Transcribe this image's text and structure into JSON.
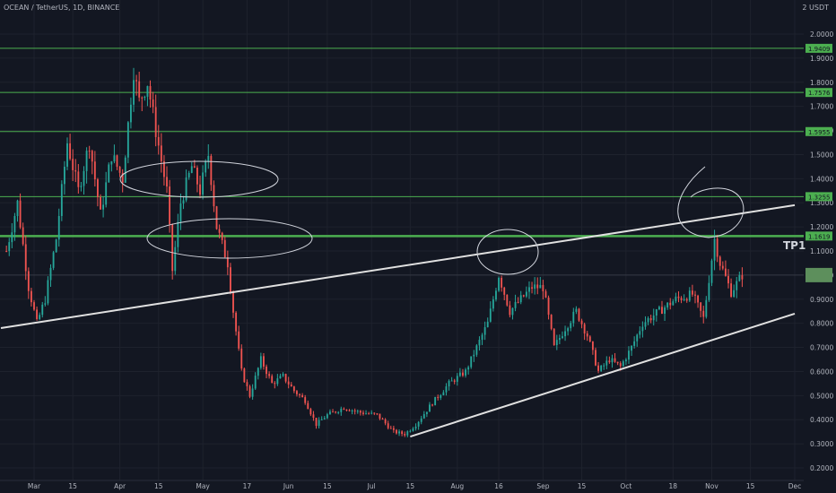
{
  "header": {
    "symbol": "OCEAN / TetherUS, 1D, BINANCE",
    "unit": "2 USDT"
  },
  "annotation": {
    "tp1": "TP1"
  },
  "colors": {
    "background": "#131722",
    "up": "#26a69a",
    "down": "#ef5350",
    "level": "#4caf50",
    "trendline": "#e0e0e0",
    "hand_drawn": "#d1d4dc"
  },
  "chart_data": {
    "type": "candlestick",
    "title": "OCEAN / TetherUS, 1D, BINANCE",
    "y_ticks": [
      2.0,
      1.9,
      1.8,
      1.7,
      1.6,
      1.5,
      1.4,
      1.3,
      1.2,
      1.1,
      1.0,
      0.9,
      0.8,
      0.7,
      0.6,
      0.5,
      0.4,
      0.3,
      0.2
    ],
    "y_tick_labels": [
      "2.0000",
      "1.9000",
      "1.8000",
      "1.7000",
      "1.6000",
      "1.5000",
      "1.4000",
      "1.3000",
      "1.2000",
      "1.1000",
      "1.0000",
      "0.9000",
      "0.8000",
      "0.7000",
      "0.6000",
      "0.5000",
      "0.4000",
      "0.3000",
      "0.2000"
    ],
    "x_tick_labels": [
      "Mar",
      "15",
      "Apr",
      "15",
      "May",
      "17",
      "Jun",
      "15",
      "Jul",
      "15",
      "Aug",
      "16",
      "Sep",
      "15",
      "Oct",
      "18",
      "Nov",
      "15",
      "Dec"
    ],
    "x_tick_days": [
      0,
      14,
      31,
      45,
      61,
      77,
      92,
      106,
      122,
      136,
      153,
      168,
      184,
      198,
      214,
      231,
      245,
      259,
      275
    ],
    "ylim": [
      0.2,
      2.05
    ],
    "levels": [
      {
        "value": 1.9409,
        "label": "1.9409"
      },
      {
        "value": 1.7576,
        "label": "1.7576"
      },
      {
        "value": 1.5955,
        "label": "1.5955"
      },
      {
        "value": 1.3255,
        "label": "1.3255"
      },
      {
        "value": 1.1619,
        "label": "1.1619"
      }
    ],
    "trendlines": [
      {
        "from": {
          "day": -12,
          "value": 0.78
        },
        "to": {
          "day": 275,
          "value": 1.29
        }
      },
      {
        "from": {
          "day": 136,
          "value": 0.33
        },
        "to": {
          "day": 275,
          "value": 0.84
        }
      }
    ],
    "anchors": [
      {
        "day": -10,
        "price": 1.1
      },
      {
        "day": -6,
        "price": 1.3
      },
      {
        "day": -2,
        "price": 0.95
      },
      {
        "day": 1,
        "price": 0.8
      },
      {
        "day": 4,
        "price": 0.9
      },
      {
        "day": 8,
        "price": 1.15
      },
      {
        "day": 12,
        "price": 1.55
      },
      {
        "day": 16,
        "price": 1.35
      },
      {
        "day": 20,
        "price": 1.55
      },
      {
        "day": 24,
        "price": 1.25
      },
      {
        "day": 28,
        "price": 1.5
      },
      {
        "day": 32,
        "price": 1.4
      },
      {
        "day": 36,
        "price": 1.85
      },
      {
        "day": 38,
        "price": 1.72
      },
      {
        "day": 41,
        "price": 1.8
      },
      {
        "day": 44,
        "price": 1.6
      },
      {
        "day": 48,
        "price": 1.35
      },
      {
        "day": 50,
        "price": 1.02
      },
      {
        "day": 53,
        "price": 1.3
      },
      {
        "day": 57,
        "price": 1.45
      },
      {
        "day": 60,
        "price": 1.35
      },
      {
        "day": 63,
        "price": 1.5
      },
      {
        "day": 66,
        "price": 1.2
      },
      {
        "day": 70,
        "price": 1.05
      },
      {
        "day": 72,
        "price": 0.85
      },
      {
        "day": 75,
        "price": 0.6
      },
      {
        "day": 78,
        "price": 0.5
      },
      {
        "day": 82,
        "price": 0.65
      },
      {
        "day": 86,
        "price": 0.55
      },
      {
        "day": 90,
        "price": 0.58
      },
      {
        "day": 94,
        "price": 0.52
      },
      {
        "day": 98,
        "price": 0.48
      },
      {
        "day": 102,
        "price": 0.38
      },
      {
        "day": 106,
        "price": 0.42
      },
      {
        "day": 112,
        "price": 0.45
      },
      {
        "day": 118,
        "price": 0.43
      },
      {
        "day": 124,
        "price": 0.42
      },
      {
        "day": 130,
        "price": 0.35
      },
      {
        "day": 134,
        "price": 0.34
      },
      {
        "day": 138,
        "price": 0.38
      },
      {
        "day": 144,
        "price": 0.47
      },
      {
        "day": 150,
        "price": 0.55
      },
      {
        "day": 156,
        "price": 0.6
      },
      {
        "day": 160,
        "price": 0.7
      },
      {
        "day": 164,
        "price": 0.8
      },
      {
        "day": 168,
        "price": 1.0
      },
      {
        "day": 172,
        "price": 0.85
      },
      {
        "day": 176,
        "price": 0.9
      },
      {
        "day": 180,
        "price": 0.95
      },
      {
        "day": 184,
        "price": 0.95
      },
      {
        "day": 188,
        "price": 0.7
      },
      {
        "day": 192,
        "price": 0.78
      },
      {
        "day": 196,
        "price": 0.85
      },
      {
        "day": 200,
        "price": 0.75
      },
      {
        "day": 204,
        "price": 0.6
      },
      {
        "day": 208,
        "price": 0.65
      },
      {
        "day": 212,
        "price": 0.62
      },
      {
        "day": 216,
        "price": 0.7
      },
      {
        "day": 220,
        "price": 0.8
      },
      {
        "day": 226,
        "price": 0.85
      },
      {
        "day": 232,
        "price": 0.9
      },
      {
        "day": 238,
        "price": 0.92
      },
      {
        "day": 242,
        "price": 0.82
      },
      {
        "day": 246,
        "price": 1.15
      },
      {
        "day": 248,
        "price": 1.05
      },
      {
        "day": 252,
        "price": 0.93
      },
      {
        "day": 256,
        "price": 1.0
      }
    ],
    "last_price": 1.0
  }
}
